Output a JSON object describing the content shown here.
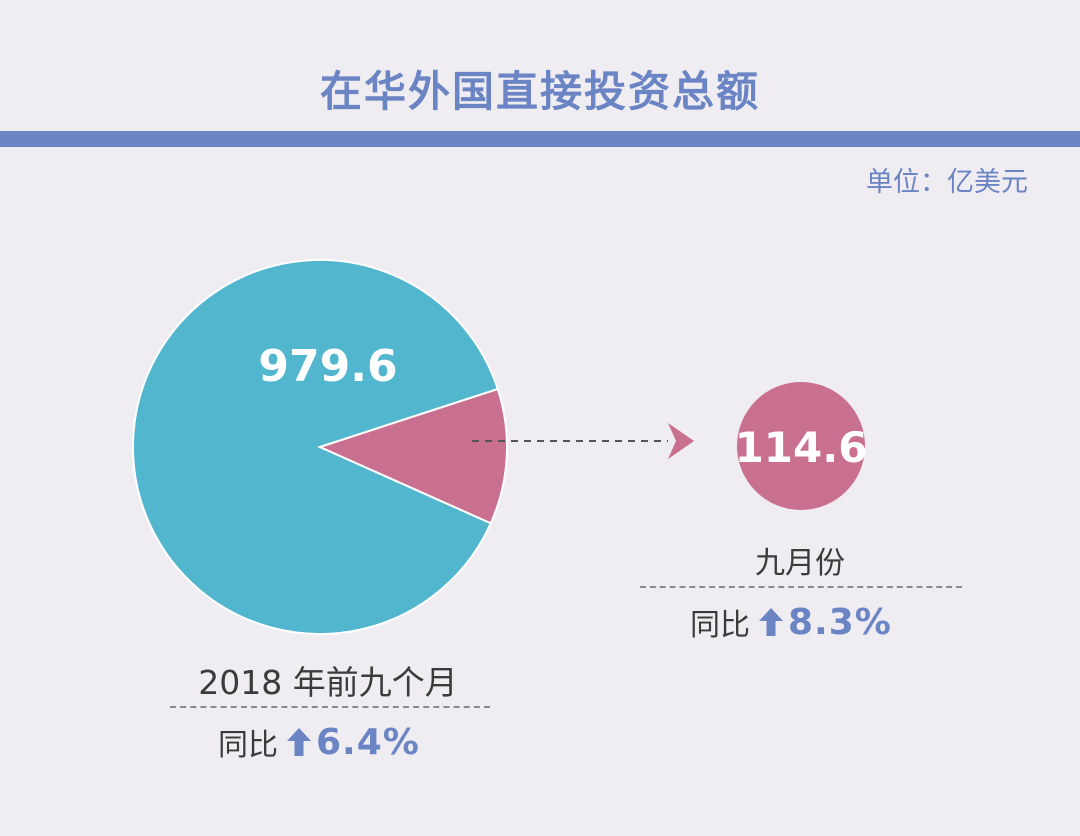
{
  "title": "在华外国直接投资总额",
  "unit": "单位：亿美元",
  "colors": {
    "accent": "#6a84c4",
    "pie_main": "#52b6cf",
    "pie_slice": "#c96f8f",
    "text": "#3b3b3b"
  },
  "chart_data": {
    "type": "pie",
    "title": "在华外国直接投资总额",
    "unit": "亿美元",
    "total": {
      "label": "2018 年前九个月",
      "value": 979.6,
      "value_label": "979.6",
      "yoy_label": "同比",
      "yoy_value": "6.4%"
    },
    "slice": {
      "label": "九月份",
      "value": 114.6,
      "value_label": "114.6",
      "yoy_label": "同比",
      "yoy_value": "8.3%"
    },
    "icons": {
      "trend": "up-arrow-icon",
      "connector": "dashed-arrow-icon"
    }
  }
}
